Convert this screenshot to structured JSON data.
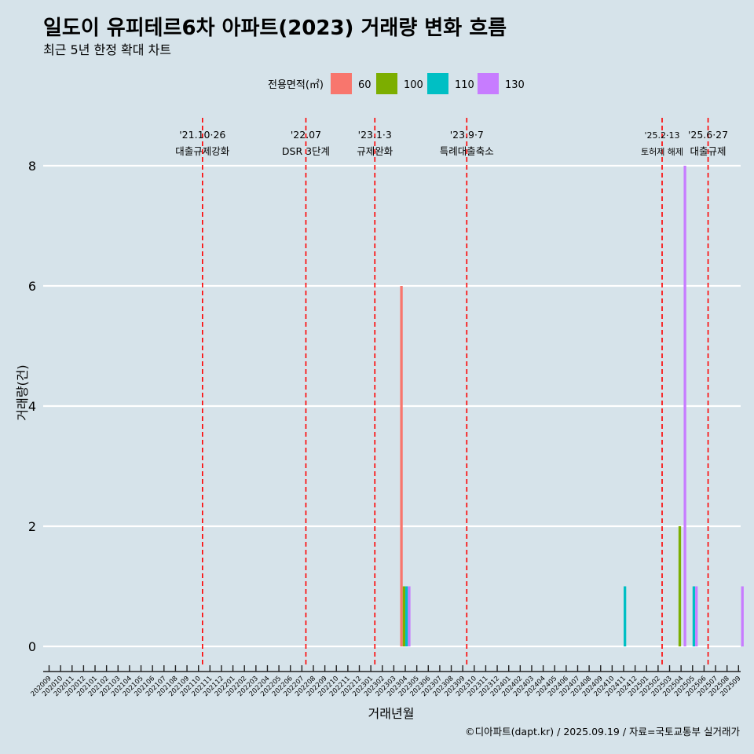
{
  "chart_data": {
    "type": "bar",
    "title": "일도이 유피테르6차 아파트(2023) 거래량 변화 흐름",
    "subtitle": "최근 5년 한정 확대 차트",
    "xlabel": "거래년월",
    "ylabel": "거래량(건)",
    "ylim": [
      0,
      8
    ],
    "yticks": [
      0,
      2,
      4,
      6,
      8
    ],
    "grid": "horizontal",
    "legend": {
      "title": "전용면적(㎡)",
      "position": "top",
      "entries": [
        {
          "label": "60",
          "color": "#f8766d"
        },
        {
          "label": "100",
          "color": "#7cae00"
        },
        {
          "label": "110",
          "color": "#00bfc4"
        },
        {
          "label": "130",
          "color": "#c77cff"
        }
      ]
    },
    "categories": [
      "202009",
      "202010",
      "202011",
      "202012",
      "202101",
      "202102",
      "202103",
      "202104",
      "202105",
      "202106",
      "202107",
      "202108",
      "202109",
      "202110",
      "202111",
      "202112",
      "202201",
      "202202",
      "202203",
      "202204",
      "202205",
      "202206",
      "202207",
      "202208",
      "202209",
      "202210",
      "202211",
      "202212",
      "202301",
      "202302",
      "202303",
      "202304",
      "202305",
      "202306",
      "202307",
      "202308",
      "202309",
      "202310",
      "202311",
      "202312",
      "202401",
      "202402",
      "202403",
      "202404",
      "202405",
      "202406",
      "202407",
      "202408",
      "202409",
      "202410",
      "202411",
      "202412",
      "202501",
      "202502",
      "202503",
      "202504",
      "202505",
      "202506",
      "202507",
      "202508",
      "202509"
    ],
    "series": [
      {
        "name": "60",
        "color": "#f8766d",
        "points": [
          {
            "x": "202304",
            "y": 6
          }
        ]
      },
      {
        "name": "100",
        "color": "#7cae00",
        "points": [
          {
            "x": "202304",
            "y": 1
          },
          {
            "x": "202504",
            "y": 2
          }
        ]
      },
      {
        "name": "110",
        "color": "#00bfc4",
        "points": [
          {
            "x": "202304",
            "y": 1
          },
          {
            "x": "202411",
            "y": 1
          },
          {
            "x": "202505",
            "y": 1
          }
        ]
      },
      {
        "name": "130",
        "color": "#c77cff",
        "points": [
          {
            "x": "202304",
            "y": 1
          },
          {
            "x": "202504",
            "y": 8
          },
          {
            "x": "202505",
            "y": 1
          },
          {
            "x": "202509",
            "y": 1
          }
        ]
      }
    ],
    "events": [
      {
        "date": "'21.10·26",
        "label": "대출규제강화",
        "x": "202110",
        "small": false
      },
      {
        "date": "'22.07",
        "label": "DSR 3단계",
        "x": "202207",
        "small": false
      },
      {
        "date": "'23.1·3",
        "label": "규제완화",
        "x": "202301",
        "small": false
      },
      {
        "date": "'23.9·7",
        "label": "특례대출축소",
        "x": "202309",
        "small": false
      },
      {
        "date": "'25.2·13",
        "label": "토허제 해제",
        "x": "202502",
        "small": true
      },
      {
        "date": "'25.6·27",
        "label": "대출규제",
        "x": "202506",
        "small": false
      }
    ],
    "event_line_color": "#ff0000",
    "caption": "©디아파트(dapt.kr) / 2025.09.19 / 자료=국토교통부 실거래가"
  }
}
